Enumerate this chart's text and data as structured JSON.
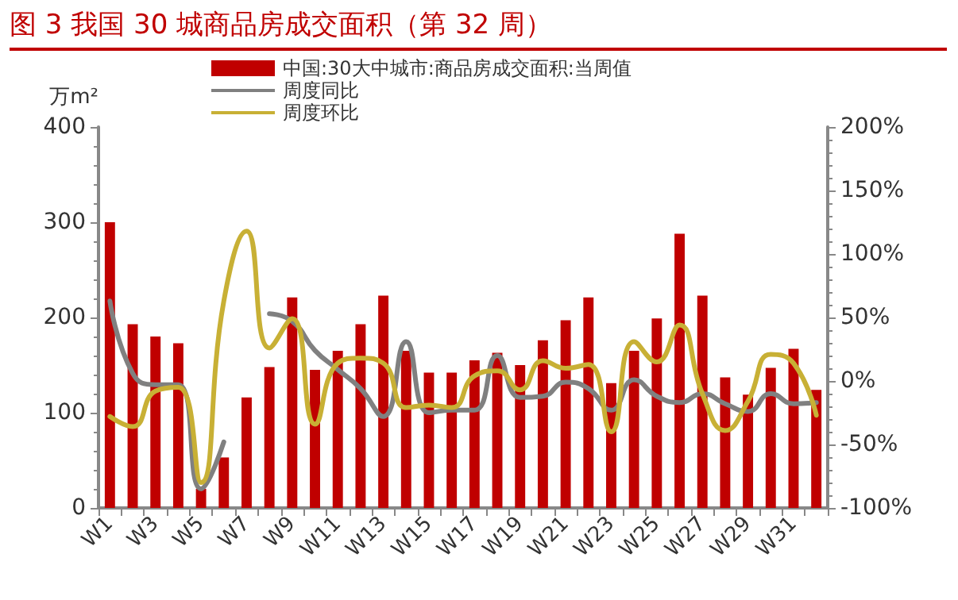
{
  "chart_data": {
    "type": "bar",
    "title": "图 3 我国 30 城商品房成交面积（第 32 周）",
    "ylabel": "万m²",
    "categories": [
      "W1",
      null,
      "W3",
      null,
      "W5",
      null,
      "W7",
      null,
      "W9",
      null,
      "W11",
      null,
      "W13",
      null,
      "W15",
      null,
      "W17",
      null,
      "W19",
      null,
      "W21",
      null,
      "W23",
      null,
      "W25",
      null,
      "W27",
      null,
      "W29",
      null,
      "W31",
      null
    ],
    "series": [
      {
        "name": "中国:30大中城市:商品房成交面积:当周值",
        "color": "#c00000",
        "values": [
          300,
          193,
          180,
          173,
          20,
          53,
          116,
          148,
          221,
          145,
          165,
          193,
          223,
          165,
          142,
          142,
          155,
          163,
          150,
          176,
          197,
          221,
          131,
          165,
          199,
          288,
          223,
          137,
          119,
          147,
          167,
          124
        ]
      },
      {
        "name": "周度同比",
        "type": "line",
        "axis": "y2",
        "color": "#808080",
        "values": [
          63,
          6,
          -3,
          -3,
          -85,
          -48,
          null,
          53,
          47,
          24,
          9,
          -6,
          -28,
          31,
          -25,
          -23,
          -23,
          20,
          -13,
          -12,
          -1,
          -6,
          -23,
          1,
          -12,
          -17,
          -10,
          -18,
          -24,
          -10,
          -18,
          -17
        ]
      },
      {
        "name": "周度环比",
        "type": "line",
        "axis": "y2",
        "color": "#c8b035",
        "values": [
          -28,
          -36,
          -8,
          -5,
          -80,
          63,
          118,
          26,
          49,
          -34,
          14,
          18,
          14,
          -21,
          -19,
          -21,
          4,
          8,
          -7,
          16,
          10,
          13,
          -40,
          31,
          15,
          44,
          -10,
          -39,
          -16,
          21,
          14,
          -27
        ]
      }
    ],
    "ylim": [
      0,
      400
    ],
    "yticks": [
      0,
      100,
      200,
      300,
      400
    ],
    "y2lim": [
      -100,
      200
    ],
    "y2ticks": [
      {
        "value": -100,
        "label": "-100%"
      },
      {
        "value": -50,
        "label": "-50%"
      },
      {
        "value": 0,
        "label": "0%"
      },
      {
        "value": 50,
        "label": "50%"
      },
      {
        "value": 100,
        "label": "100%"
      },
      {
        "value": 150,
        "label": "150%"
      },
      {
        "value": 200,
        "label": "200%"
      }
    ],
    "grid": false,
    "legend": "top",
    "marker": "none",
    "line_style": "solid"
  }
}
